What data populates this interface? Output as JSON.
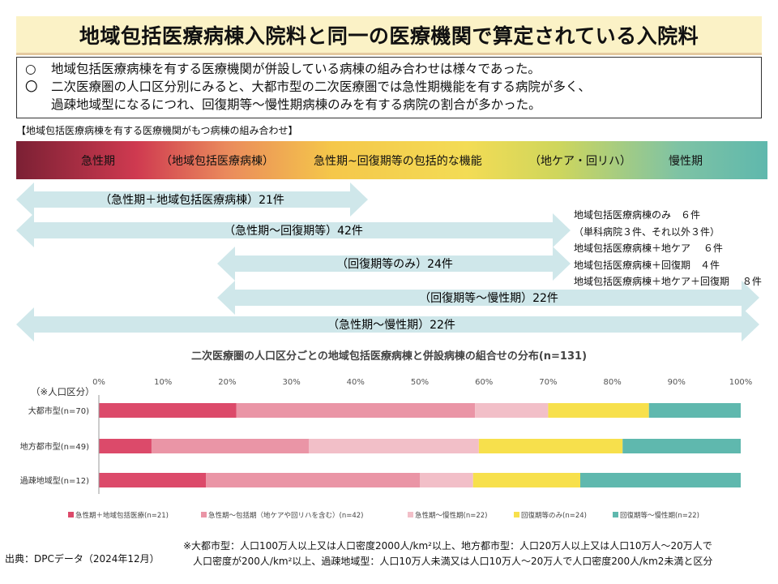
{
  "title": "地域包括医療病棟入院料と同一の医療機関で算定されている入院料",
  "summary": {
    "bullet1_mark": "○",
    "bullet1": "地域包括医療病棟を有する医療機関が併設している病棟の組み合わせは様々であった。",
    "bullet2_mark": "〇",
    "bullet2_line1": "二次医療圏の人口区分別にみると、大都市型の二次医療圏では急性期機能を有する病院が多く、",
    "bullet2_line2": "過疎地域型になるにつれ、回復期等～慢性期病棟のみを有する病院の割合が多かった。"
  },
  "section_label": "【地域包括医療病棟を有する医療機関がもつ病棟の組み合わせ】",
  "spectrum": {
    "labels": [
      "急性期",
      "（地域包括医療病棟）",
      "急性期~回復期等の包括的な機能",
      "（地ケア・回リハ）",
      "慢性期"
    ]
  },
  "combos": [
    {
      "label": "（急性期＋地域包括医療病棟）21件"
    },
    {
      "label": "（急性期～回復期等）42件"
    },
    {
      "label": "（回復期等のみ）24件"
    },
    {
      "label": "（回復期等～慢性期）22件"
    },
    {
      "label": "（急性期～慢性期）22件"
    }
  ],
  "notes": [
    "地域包括医療病棟のみ　６件",
    "（単科病院３件、それ以外３件）",
    "地域包括医療病棟＋地ケア　 ６件",
    "地域包括医療病棟＋回復期　４件",
    "地域包括医療病棟＋地ケア＋回復期　 ８件"
  ],
  "chart_data": {
    "type": "bar",
    "orientation": "horizontal",
    "stacked": true,
    "normalized": true,
    "title": "二次医療圏の人口区分ごとの地域包括医療病棟と併設病棟の組合せの分布(n=131)",
    "ylabel": "（※人口区分）",
    "categories": [
      "大都市型(n=70)",
      "地方都市型(n=49)",
      "過疎地域型(n=12)"
    ],
    "x_ticks": [
      "0%",
      "10%",
      "20%",
      "30%",
      "40%",
      "50%",
      "60%",
      "70%",
      "80%",
      "90%",
      "100%"
    ],
    "xlim": [
      0,
      100
    ],
    "series": [
      {
        "name": "急性期＋地域包括医療(n=21)",
        "color": "#dc4a6a",
        "values": [
          21.4,
          8.2,
          16.7
        ]
      },
      {
        "name": "急性期～包括期（地ケアや回リハを含む）(n=42)",
        "color": "#ea95a6",
        "values": [
          37.2,
          24.5,
          33.3
        ]
      },
      {
        "name": "急性期～慢性期(n=22)",
        "color": "#f2bfc8",
        "values": [
          11.4,
          26.5,
          8.3
        ]
      },
      {
        "name": "回復期等のみ(n=24)",
        "color": "#f7e04c",
        "values": [
          15.7,
          22.4,
          16.7
        ]
      },
      {
        "name": "回復期等～慢性期(n=22)",
        "color": "#5fb8ae",
        "values": [
          14.3,
          18.4,
          25.0
        ]
      }
    ],
    "legend_position": "bottom"
  },
  "footnote": {
    "line1": "※大都市型：人口100万人以上又は人口密度2000人/km²以上、地方都市型：人口20万人以上又は人口10万人～20万人で",
    "line2": "人口密度が200人/km²以上、過疎地域型：人口10万人未満又は人口10万人～20万人で人口密度200人/km2未満と区分"
  },
  "source": "出典：DPCデータ（2024年12月）"
}
